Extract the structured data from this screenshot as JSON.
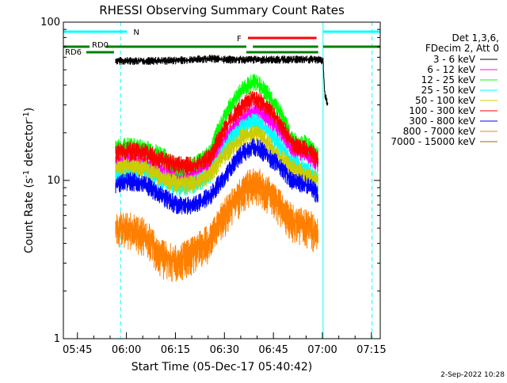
{
  "chart_data": {
    "type": "line",
    "title": "RHESSI Observing Summary Count Rates",
    "xlabel": "Start Time (05-Dec-17 05:40:42)",
    "ylabel_main": "Count Rate (s",
    "ylabel_sup1": "-1",
    "ylabel_mid": " detector",
    "ylabel_sup2": "-1",
    "ylabel_end": ")",
    "yscale": "log",
    "ylim": [
      1,
      100
    ],
    "xlim_minutes": [
      0,
      97
    ],
    "x_ticks": [
      {
        "label": "05:45",
        "t": 4.3
      },
      {
        "label": "06:00",
        "t": 19.3
      },
      {
        "label": "06:15",
        "t": 34.3
      },
      {
        "label": "06:30",
        "t": 49.3
      },
      {
        "label": "06:45",
        "t": 64.3
      },
      {
        "label": "07:00",
        "t": 79.3
      },
      {
        "label": "07:15",
        "t": 94.3
      }
    ],
    "y_ticks": [
      {
        "label": "100",
        "v": 100
      },
      {
        "label": "10",
        "v": 10
      },
      {
        "label": "1",
        "v": 1
      }
    ],
    "legend_header": [
      "Det 1,3,6,",
      "FDecim 2, Att 0"
    ],
    "legend_placement": "right",
    "series": [
      {
        "name": "3 - 6 keV",
        "color": "#000000",
        "points": [
          [
            16,
            57
          ],
          [
            20,
            57
          ],
          [
            30,
            57
          ],
          [
            40,
            58
          ],
          [
            45,
            59
          ],
          [
            50,
            58
          ],
          [
            55,
            58
          ],
          [
            60,
            58
          ],
          [
            65,
            58
          ],
          [
            70,
            58
          ],
          [
            75,
            58
          ],
          [
            78,
            58
          ],
          [
            79.5,
            57
          ],
          [
            80,
            35
          ],
          [
            81,
            30
          ]
        ]
      },
      {
        "name": "6 - 12 keV",
        "color": "#ff00ff",
        "points": [
          [
            16,
            13
          ],
          [
            20,
            13.5
          ],
          [
            25,
            13
          ],
          [
            30,
            11.5
          ],
          [
            35,
            10.5
          ],
          [
            40,
            11
          ],
          [
            45,
            13
          ],
          [
            50,
            19
          ],
          [
            55,
            25
          ],
          [
            58,
            27
          ],
          [
            60,
            27
          ],
          [
            65,
            22
          ],
          [
            70,
            16
          ],
          [
            74,
            15
          ],
          [
            76,
            14
          ],
          [
            78,
            13
          ]
        ]
      },
      {
        "name": "12 - 25 keV",
        "color": "#00ff00",
        "points": [
          [
            16,
            16
          ],
          [
            20,
            16.5
          ],
          [
            25,
            16
          ],
          [
            30,
            14.5
          ],
          [
            35,
            12
          ],
          [
            40,
            12.5
          ],
          [
            45,
            15
          ],
          [
            50,
            27
          ],
          [
            55,
            38
          ],
          [
            58,
            42
          ],
          [
            60,
            40
          ],
          [
            65,
            30
          ],
          [
            70,
            18
          ],
          [
            74,
            17
          ],
          [
            76,
            16
          ],
          [
            78,
            14
          ]
        ]
      },
      {
        "name": "25 - 50 keV",
        "color": "#00ffff",
        "points": [
          [
            16,
            11
          ],
          [
            20,
            12
          ],
          [
            25,
            11.5
          ],
          [
            30,
            10
          ],
          [
            35,
            9
          ],
          [
            40,
            9.5
          ],
          [
            45,
            11
          ],
          [
            50,
            17
          ],
          [
            55,
            22
          ],
          [
            58,
            23.5
          ],
          [
            60,
            23
          ],
          [
            65,
            18
          ],
          [
            70,
            13
          ],
          [
            74,
            12
          ],
          [
            76,
            11
          ],
          [
            78,
            10
          ]
        ]
      },
      {
        "name": "50 - 100 keV",
        "color": "#cccc00",
        "points": [
          [
            16,
            12
          ],
          [
            20,
            12.5
          ],
          [
            25,
            12
          ],
          [
            30,
            10.5
          ],
          [
            35,
            9.5
          ],
          [
            40,
            9.5
          ],
          [
            45,
            11
          ],
          [
            50,
            15
          ],
          [
            55,
            19
          ],
          [
            58,
            20
          ],
          [
            60,
            19.5
          ],
          [
            65,
            15
          ],
          [
            70,
            12
          ],
          [
            74,
            11
          ],
          [
            76,
            10.5
          ],
          [
            78,
            10
          ]
        ]
      },
      {
        "name": "100 - 300 keV",
        "color": "#ff0000",
        "points": [
          [
            16,
            15
          ],
          [
            20,
            15.5
          ],
          [
            25,
            15
          ],
          [
            30,
            13.5
          ],
          [
            35,
            12.5
          ],
          [
            40,
            12.5
          ],
          [
            45,
            14
          ],
          [
            50,
            22
          ],
          [
            55,
            30
          ],
          [
            58,
            33
          ],
          [
            60,
            32
          ],
          [
            65,
            25
          ],
          [
            70,
            17
          ],
          [
            74,
            16
          ],
          [
            76,
            15
          ],
          [
            78,
            13.5
          ]
        ]
      },
      {
        "name": "300 - 800 keV",
        "color": "#0000ff",
        "points": [
          [
            16,
            9.5
          ],
          [
            20,
            10
          ],
          [
            25,
            9.5
          ],
          [
            30,
            8
          ],
          [
            35,
            7
          ],
          [
            40,
            7
          ],
          [
            45,
            8
          ],
          [
            50,
            11
          ],
          [
            55,
            15
          ],
          [
            58,
            16.5
          ],
          [
            60,
            16
          ],
          [
            65,
            13
          ],
          [
            70,
            10
          ],
          [
            74,
            9.5
          ],
          [
            76,
            9
          ],
          [
            78,
            8
          ]
        ]
      },
      {
        "name": "800 - 7000 keV",
        "color": "#ff8000",
        "points": [
          [
            16,
            5
          ],
          [
            20,
            5
          ],
          [
            25,
            4.5
          ],
          [
            30,
            3.3
          ],
          [
            35,
            3.1
          ],
          [
            40,
            3.5
          ],
          [
            45,
            4.2
          ],
          [
            50,
            6.3
          ],
          [
            55,
            8.5
          ],
          [
            58,
            9.7
          ],
          [
            60,
            9.4
          ],
          [
            65,
            7.5
          ],
          [
            70,
            5.5
          ],
          [
            74,
            5.2
          ],
          [
            76,
            5
          ],
          [
            78,
            4.5
          ]
        ]
      },
      {
        "name": "7000 - 15000 keV",
        "color": "#996600",
        "points": []
      }
    ],
    "segment_bars": [
      {
        "label": "N",
        "color": "#00ffff",
        "segments": [
          [
            0,
            19.5
          ],
          [
            79.5,
            97
          ]
        ]
      },
      {
        "label": "F",
        "color": "#ff0000",
        "segments": [
          [
            56.5,
            77.5
          ]
        ]
      },
      {
        "label": "RD0",
        "color": "#008000",
        "segments": [
          [
            0,
            8
          ],
          [
            13,
            56
          ],
          [
            58,
            78
          ],
          [
            79.5,
            97
          ]
        ]
      },
      {
        "label": "RD6",
        "color": "#008000",
        "segments": [
          [
            7,
            15.5
          ],
          [
            56,
            78
          ]
        ]
      }
    ],
    "vlines_solid": [
      0,
      79.5
    ],
    "vlines_dashed": [
      17.5,
      94.5
    ]
  },
  "footer": {
    "date": "2-Sep-2022 10:28"
  }
}
